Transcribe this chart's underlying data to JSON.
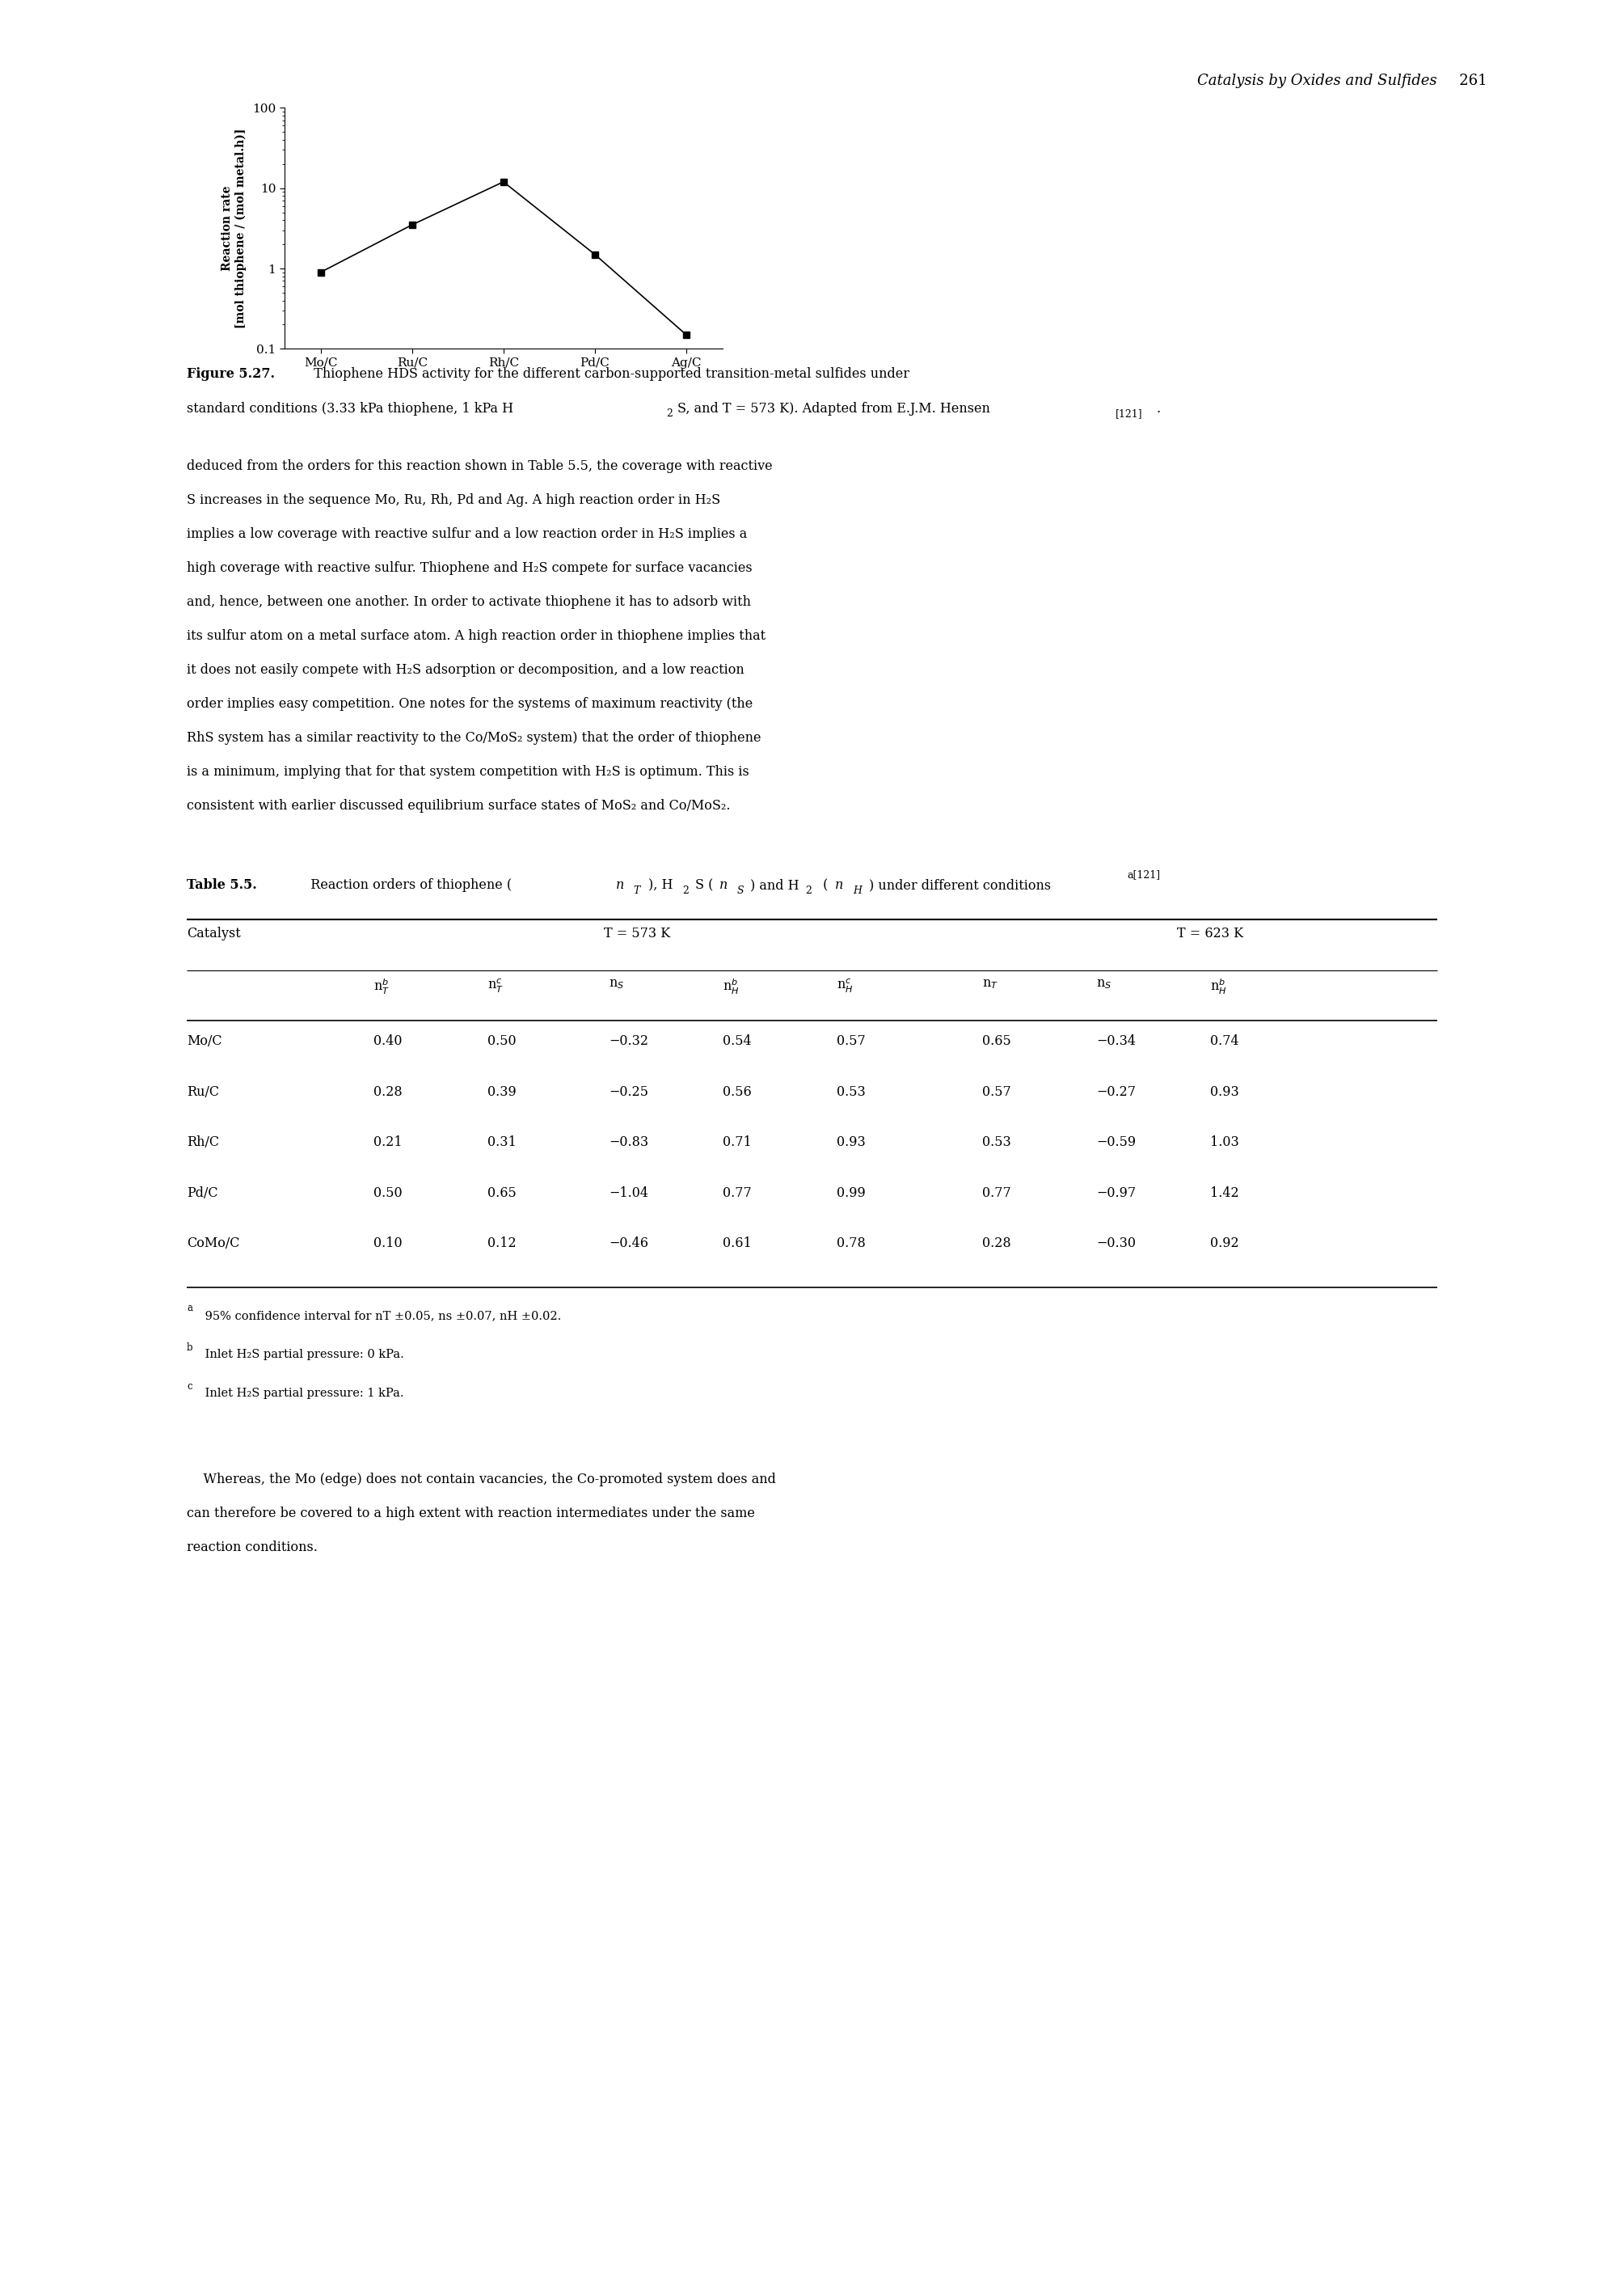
{
  "x_labels": [
    "Mo/C",
    "Ru/C",
    "Rh/C",
    "Pd/C",
    "Ag/C"
  ],
  "y_values": [
    0.9,
    3.5,
    12.0,
    1.5,
    0.15
  ],
  "ylabel_line1": "Reaction rate",
  "ylabel_line2": "[mol thiophene / (mol metal.h)]",
  "ylim": [
    0.1,
    100
  ],
  "marker": "s",
  "marker_color": "#000000",
  "line_color": "#000000",
  "marker_size": 6,
  "line_width": 1.2,
  "background_color": "#ffffff",
  "page_header": "Catalysis by Oxides and Sulfides",
  "page_number": "261",
  "body_text_lines": [
    "deduced from the orders for this reaction shown in Table 5.5, the coverage with reactive",
    "S increases in the sequence Mo, Ru, Rh, Pd and Ag. A high reaction order in H₂S",
    "implies a low coverage with reactive sulfur and a low reaction order in H₂S implies a",
    "high coverage with reactive sulfur. Thiophene and H₂S compete for surface vacancies",
    "and, hence, between one another. In order to activate thiophene it has to adsorb with",
    "its sulfur atom on a metal surface atom. A high reaction order in thiophene implies that",
    "it does not easily compete with H₂S adsorption or decomposition, and a low reaction",
    "order implies easy competition. One notes for the systems of maximum reactivity (the",
    "RhS system has a similar reactivity to the Co/MoS₂ system) that the order of thiophene",
    "is a minimum, implying that for that system competition with H₂S is optimum. This is",
    "consistent with earlier discussed equilibrium surface states of MoS₂ and Co/MoS₂."
  ],
  "table_data": [
    [
      "Mo/C",
      "0.40",
      "0.50",
      "−0.32",
      "0.54",
      "0.57",
      "0.65",
      "−0.34",
      "0.74"
    ],
    [
      "Ru/C",
      "0.28",
      "0.39",
      "−0.25",
      "0.56",
      "0.53",
      "0.57",
      "−0.27",
      "0.93"
    ],
    [
      "Rh/C",
      "0.21",
      "0.31",
      "−0.83",
      "0.71",
      "0.93",
      "0.53",
      "−0.59",
      "1.03"
    ],
    [
      "Pd/C",
      "0.50",
      "0.65",
      "−1.04",
      "0.77",
      "0.99",
      "0.77",
      "−0.97",
      "1.42"
    ],
    [
      "CoMo/C",
      "0.10",
      "0.12",
      "−0.46",
      "0.61",
      "0.78",
      "0.28",
      "−0.30",
      "0.92"
    ]
  ],
  "footnotes": [
    "a 95% confidence interval for nT ±0.05, ns ±0.07, nH ±0.02.",
    "b Inlet H₂S partial pressure: 0 kPa.",
    "c Inlet H₂S partial pressure: 1 kPa."
  ],
  "final_para": "    Whereas, the Mo (edge) does not contain vacancies, the Co-promoted system does and can therefore be covered to a high extent with reaction intermediates under the same reaction conditions."
}
